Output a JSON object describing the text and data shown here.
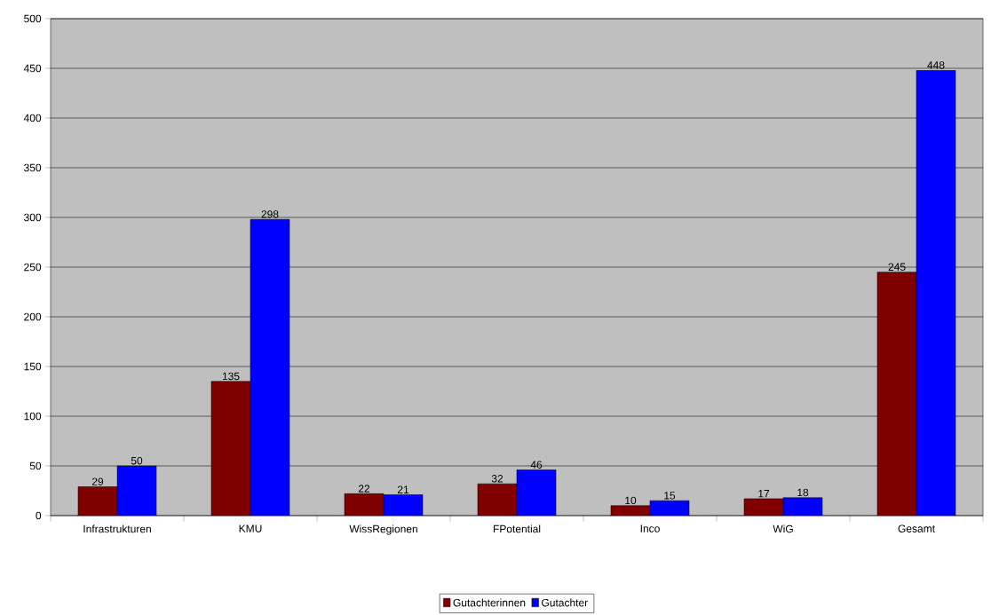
{
  "chart_data": {
    "type": "bar",
    "categories": [
      "Infrastrukturen",
      "KMU",
      "WissRegionen",
      "FPotential",
      "Inco",
      "WiG",
      "Gesamt"
    ],
    "series": [
      {
        "name": "Gutachterinnen",
        "color": "#800000",
        "values": [
          29,
          135,
          22,
          32,
          10,
          17,
          245
        ]
      },
      {
        "name": "Gutachter",
        "color": "#0000ff",
        "values": [
          50,
          298,
          21,
          46,
          15,
          18,
          448
        ]
      }
    ],
    "ylim": [
      0,
      500
    ],
    "yticks": [
      0,
      50,
      100,
      150,
      200,
      250,
      300,
      350,
      400,
      450,
      500
    ],
    "grid": "y",
    "legend": "bottom",
    "data_labels": true
  }
}
